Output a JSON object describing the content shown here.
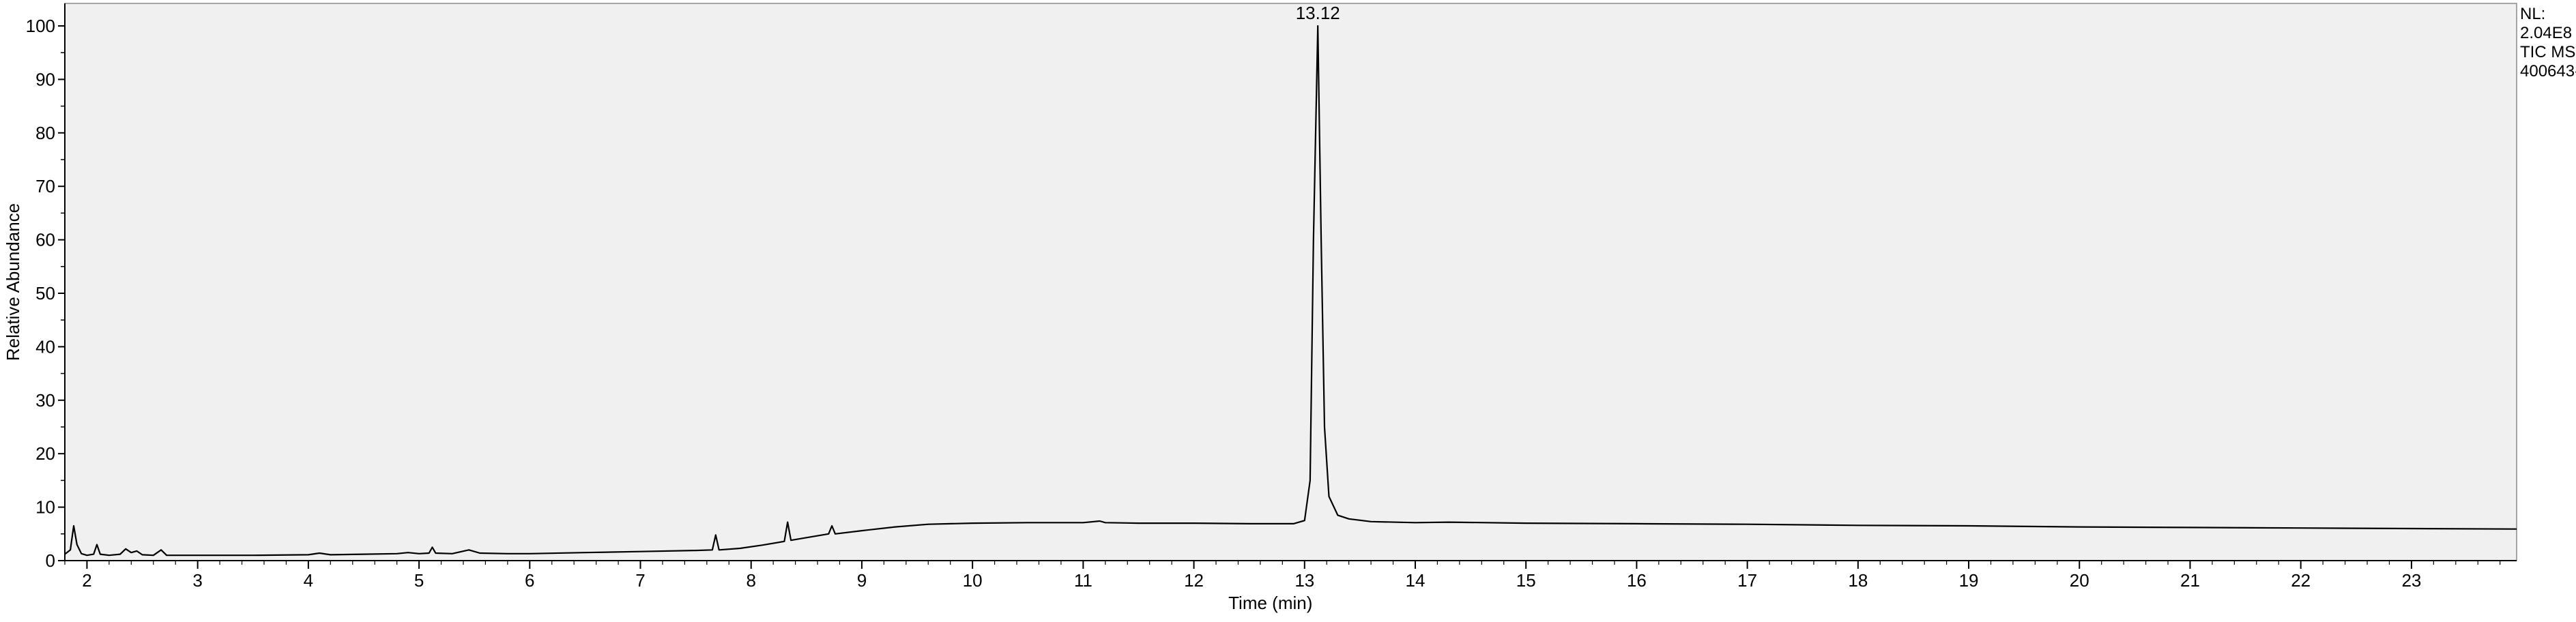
{
  "chart_data": {
    "type": "line",
    "title": "",
    "xlabel": "Time (min)",
    "ylabel": "Relative Abundance",
    "xlim": [
      1.8,
      23.95
    ],
    "ylim": [
      0,
      100
    ],
    "x_ticks": [
      2,
      3,
      4,
      5,
      6,
      7,
      8,
      9,
      10,
      11,
      12,
      13,
      14,
      15,
      16,
      17,
      18,
      19,
      20,
      21,
      22,
      23
    ],
    "y_ticks": [
      0,
      10,
      20,
      30,
      40,
      50,
      60,
      70,
      80,
      90,
      100
    ],
    "grid": false,
    "background_color": "#f0f0f0",
    "trace_color": "#000000",
    "peak_annotations": [
      {
        "x": 13.12,
        "y": 100,
        "label": "13.12"
      }
    ],
    "info_box": [
      "NL:",
      "2.04E8",
      "TIC  MS",
      "400643-"
    ],
    "series": [
      {
        "points": [
          [
            1.8,
            1.2
          ],
          [
            1.85,
            2.0
          ],
          [
            1.88,
            6.5
          ],
          [
            1.91,
            3.0
          ],
          [
            1.95,
            1.3
          ],
          [
            2.0,
            1.0
          ],
          [
            2.06,
            1.2
          ],
          [
            2.09,
            3.0
          ],
          [
            2.12,
            1.2
          ],
          [
            2.2,
            1.0
          ],
          [
            2.3,
            1.2
          ],
          [
            2.35,
            2.2
          ],
          [
            2.4,
            1.5
          ],
          [
            2.45,
            1.8
          ],
          [
            2.5,
            1.1
          ],
          [
            2.6,
            1.0
          ],
          [
            2.67,
            2.0
          ],
          [
            2.72,
            1.0
          ],
          [
            3.0,
            1.0
          ],
          [
            3.5,
            1.0
          ],
          [
            4.0,
            1.1
          ],
          [
            4.1,
            1.4
          ],
          [
            4.2,
            1.1
          ],
          [
            4.5,
            1.2
          ],
          [
            4.8,
            1.3
          ],
          [
            4.9,
            1.5
          ],
          [
            5.0,
            1.3
          ],
          [
            5.09,
            1.4
          ],
          [
            5.12,
            2.5
          ],
          [
            5.15,
            1.4
          ],
          [
            5.3,
            1.3
          ],
          [
            5.45,
            2.0
          ],
          [
            5.55,
            1.4
          ],
          [
            5.8,
            1.3
          ],
          [
            6.0,
            1.3
          ],
          [
            6.5,
            1.5
          ],
          [
            7.0,
            1.7
          ],
          [
            7.5,
            1.9
          ],
          [
            7.65,
            2.0
          ],
          [
            7.68,
            4.8
          ],
          [
            7.71,
            2.0
          ],
          [
            7.9,
            2.3
          ],
          [
            8.1,
            2.9
          ],
          [
            8.3,
            3.6
          ],
          [
            8.33,
            7.2
          ],
          [
            8.36,
            3.8
          ],
          [
            8.5,
            4.3
          ],
          [
            8.7,
            5.0
          ],
          [
            8.73,
            6.5
          ],
          [
            8.76,
            5.0
          ],
          [
            9.0,
            5.6
          ],
          [
            9.3,
            6.3
          ],
          [
            9.6,
            6.8
          ],
          [
            10.0,
            7.0
          ],
          [
            10.5,
            7.1
          ],
          [
            11.0,
            7.1
          ],
          [
            11.15,
            7.4
          ],
          [
            11.2,
            7.1
          ],
          [
            11.5,
            7.0
          ],
          [
            12.0,
            7.0
          ],
          [
            12.5,
            6.9
          ],
          [
            12.9,
            6.9
          ],
          [
            13.0,
            7.5
          ],
          [
            13.05,
            15.0
          ],
          [
            13.08,
            60.0
          ],
          [
            13.12,
            100.0
          ],
          [
            13.15,
            60.0
          ],
          [
            13.18,
            25.0
          ],
          [
            13.22,
            12.0
          ],
          [
            13.3,
            8.5
          ],
          [
            13.4,
            7.8
          ],
          [
            13.6,
            7.3
          ],
          [
            14.0,
            7.1
          ],
          [
            14.3,
            7.2
          ],
          [
            15.0,
            7.0
          ],
          [
            16.0,
            6.9
          ],
          [
            17.0,
            6.8
          ],
          [
            18.0,
            6.6
          ],
          [
            19.0,
            6.5
          ],
          [
            20.0,
            6.3
          ],
          [
            21.0,
            6.2
          ],
          [
            22.0,
            6.1
          ],
          [
            23.0,
            6.0
          ],
          [
            23.95,
            5.9
          ]
        ]
      }
    ]
  }
}
